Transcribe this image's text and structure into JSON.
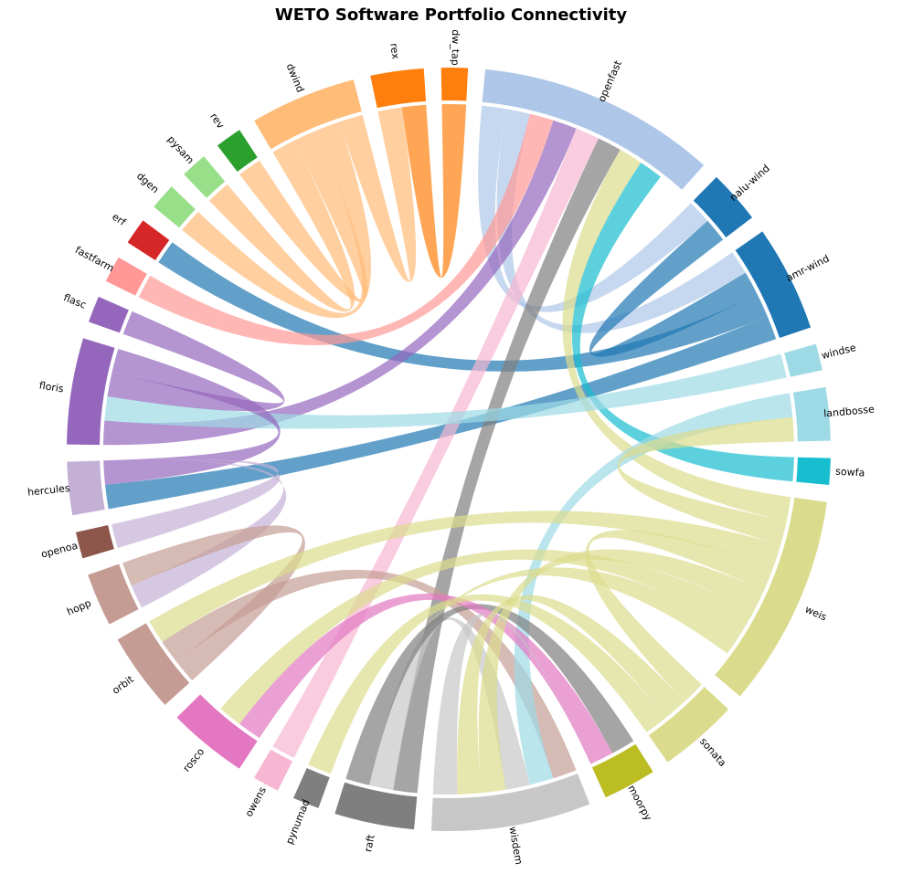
{
  "chart_data": {
    "type": "chord",
    "title": "WETO Software Portfolio Connectivity",
    "nodes": [
      {
        "name": "openfast",
        "value": 9,
        "color": "#aec7e8"
      },
      {
        "name": "nalu-wind",
        "value": 2,
        "color": "#1f77b4"
      },
      {
        "name": "amr-wind",
        "value": 4,
        "color": "#1f77b4"
      },
      {
        "name": "windse",
        "value": 1,
        "color": "#9edae5"
      },
      {
        "name": "landbosse",
        "value": 2,
        "color": "#9edae5"
      },
      {
        "name": "sowfa",
        "value": 1,
        "color": "#17becf"
      },
      {
        "name": "weis",
        "value": 8,
        "color": "#dbdb8d"
      },
      {
        "name": "sonata",
        "value": 3,
        "color": "#dbdb8d"
      },
      {
        "name": "moorpy",
        "value": 2,
        "color": "#bcbd22"
      },
      {
        "name": "wisdem",
        "value": 6,
        "color": "#c7c7c7"
      },
      {
        "name": "raft",
        "value": 3,
        "color": "#7f7f7f"
      },
      {
        "name": "pynumad",
        "value": 1,
        "color": "#7f7f7f"
      },
      {
        "name": "owens",
        "value": 1,
        "color": "#f7b6d2"
      },
      {
        "name": "rosco",
        "value": 3,
        "color": "#e377c2"
      },
      {
        "name": "orbit",
        "value": 3,
        "color": "#c49c94"
      },
      {
        "name": "hopp",
        "value": 2,
        "color": "#c49c94"
      },
      {
        "name": "openoa",
        "value": 1,
        "color": "#8c564b"
      },
      {
        "name": "hercules",
        "value": 2,
        "color": "#c5b0d5"
      },
      {
        "name": "floris",
        "value": 4,
        "color": "#9467bd"
      },
      {
        "name": "flasc",
        "value": 1,
        "color": "#9467bd"
      },
      {
        "name": "fastfarm",
        "value": 1,
        "color": "#ff9896"
      },
      {
        "name": "erf",
        "value": 1,
        "color": "#d62728"
      },
      {
        "name": "dgen",
        "value": 1,
        "color": "#98df8a"
      },
      {
        "name": "pysam",
        "value": 1,
        "color": "#98df8a"
      },
      {
        "name": "rev",
        "value": 1,
        "color": "#2ca02c"
      },
      {
        "name": "dwind",
        "value": 4,
        "color": "#ffbb78"
      },
      {
        "name": "rex",
        "value": 2,
        "color": "#ff7f0e"
      },
      {
        "name": "dw_tap",
        "value": 1,
        "color": "#ff7f0e"
      }
    ],
    "links": [
      {
        "source": "dwind",
        "target": "pysam",
        "value": 1
      },
      {
        "source": "dwind",
        "target": "rev",
        "value": 1
      },
      {
        "source": "dwind",
        "target": "dgen",
        "value": 1
      },
      {
        "source": "dwind",
        "target": "rex",
        "value": 1
      },
      {
        "source": "rex",
        "target": "dw_tap",
        "value": 1
      },
      {
        "source": "openfast",
        "target": "nalu-wind",
        "value": 1
      },
      {
        "source": "openfast",
        "target": "amr-wind",
        "value": 1
      },
      {
        "source": "amr-wind",
        "target": "nalu-wind",
        "value": 1
      },
      {
        "source": "amr-wind",
        "target": "erf",
        "value": 1
      },
      {
        "source": "amr-wind",
        "target": "hercules",
        "value": 1
      },
      {
        "source": "fastfarm",
        "target": "openfast",
        "value": 1
      },
      {
        "source": "floris",
        "target": "openfast",
        "value": 1
      },
      {
        "source": "owens",
        "target": "openfast",
        "value": 1
      },
      {
        "source": "raft",
        "target": "openfast",
        "value": 1
      },
      {
        "source": "weis",
        "target": "openfast",
        "value": 1
      },
      {
        "source": "sowfa",
        "target": "openfast",
        "value": 1
      },
      {
        "source": "windse",
        "target": "floris",
        "value": 1
      },
      {
        "source": "floris",
        "target": "flasc",
        "value": 1
      },
      {
        "source": "floris",
        "target": "hercules",
        "value": 1
      },
      {
        "source": "hercules",
        "target": "hopp",
        "value": 1
      },
      {
        "source": "hopp",
        "target": "orbit",
        "value": 1
      },
      {
        "source": "orbit",
        "target": "wisdem",
        "value": 1
      },
      {
        "source": "landbosse",
        "target": "wisdem",
        "value": 1
      },
      {
        "source": "wisdem",
        "target": "raft",
        "value": 1
      },
      {
        "source": "raft",
        "target": "moorpy",
        "value": 1
      },
      {
        "source": "rosco",
        "target": "moorpy",
        "value": 1
      },
      {
        "source": "weis",
        "target": "landbosse",
        "value": 1
      },
      {
        "source": "weis",
        "target": "orbit",
        "value": 1
      },
      {
        "source": "weis",
        "target": "sonata",
        "value": 1
      },
      {
        "source": "weis",
        "target": "wisdem",
        "value": 1
      },
      {
        "source": "weis",
        "target": "rosco",
        "value": 1
      },
      {
        "source": "weis",
        "target": "raft",
        "value": 1
      },
      {
        "source": "sonata",
        "target": "wisdem",
        "value": 1
      },
      {
        "source": "sonata",
        "target": "pynumad",
        "value": 1
      },
      {
        "source": "hercules",
        "target": "openoa",
        "value": 1
      },
      {
        "source": "wisdem",
        "target": "moorpy",
        "value": 1
      }
    ]
  }
}
